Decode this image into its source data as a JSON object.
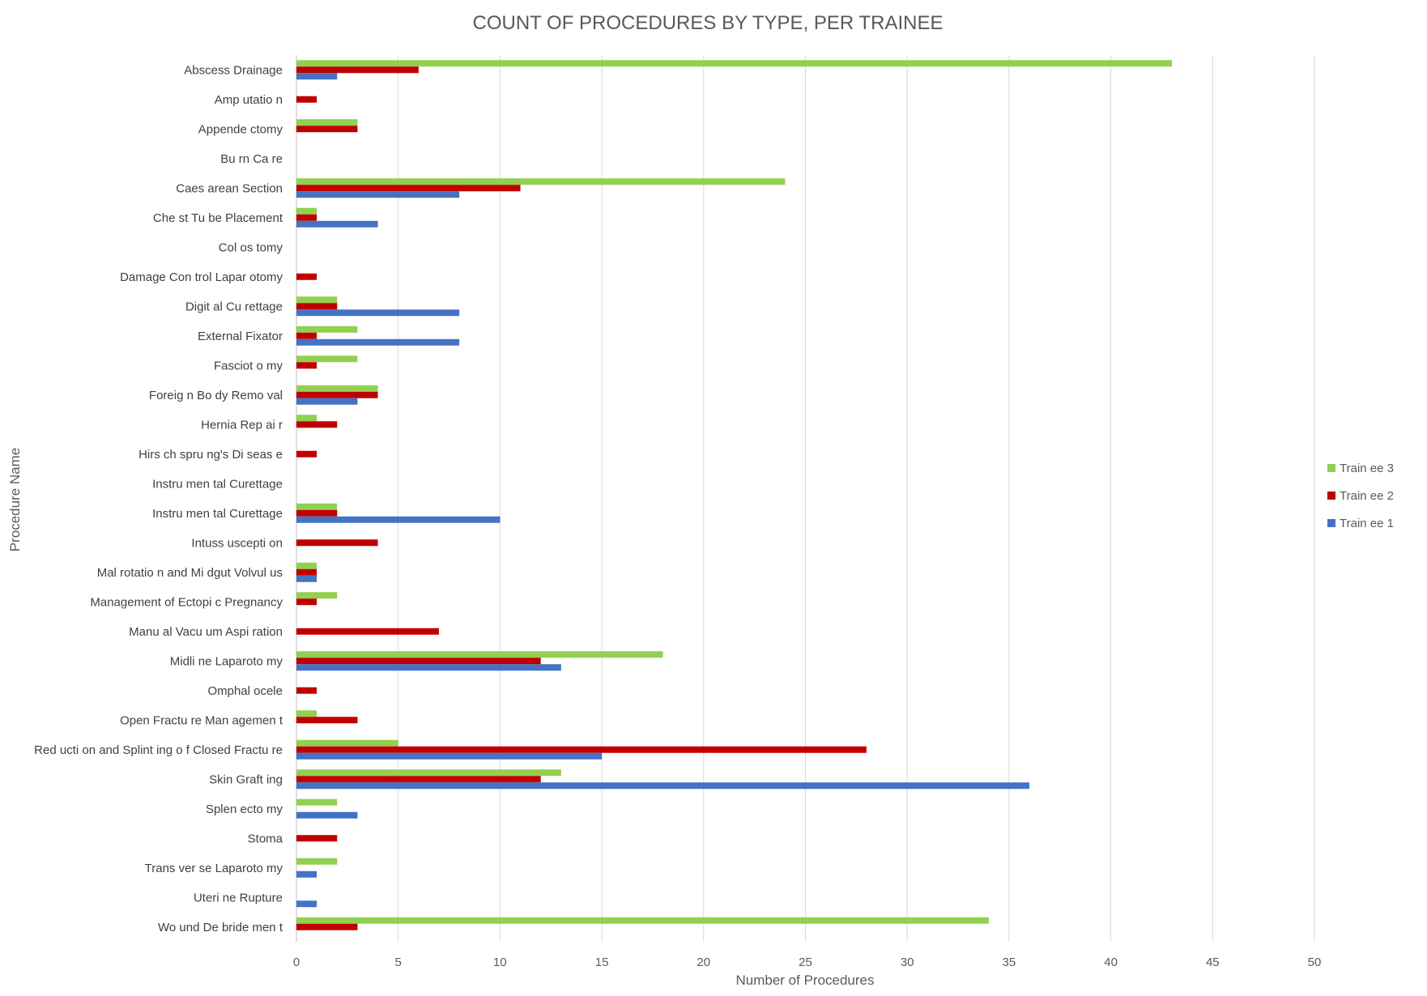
{
  "chart_data": {
    "type": "bar",
    "orientation": "horizontal",
    "title": "COUNT OF PROCEDURES BY TYPE, PER TRAINEE",
    "xlabel": "Number of Procedures",
    "ylabel": "Procedure Name",
    "xlim": [
      0,
      50
    ],
    "xticks": [
      0,
      5,
      10,
      15,
      20,
      25,
      30,
      35,
      40,
      45,
      50
    ],
    "grid": true,
    "legend_position": "right",
    "categories": [
      "Abscess Drainage",
      "Amp utatio n",
      "Appende ctomy",
      "Bu rn Ca re",
      "Caes arean Section",
      "Che st Tu be Placement",
      "Col os tomy",
      "Damage Con trol Lapar otomy",
      "Digit al Cu rettage",
      "External Fixator",
      "Fasciot o my",
      "Foreig n Bo dy Remo val",
      "Hernia Rep ai r",
      "Hirs ch spru ng's Di seas e",
      "Instru men tal Curettage",
      "Instru men tal Curettage",
      "Intuss uscepti on",
      "Mal rotatio n and Mi dgut Volvul us",
      "Management of Ectopi c Pregnancy",
      "Manu al Vacu um Aspi ration",
      "Midli ne Laparoto my",
      "Omphal ocele",
      "Open Fractu re Man agemen t",
      "Red ucti on and Splint ing o f Closed Fractu re",
      "Skin Graft ing",
      "Splen ecto my",
      "Stoma",
      "Trans ver se Laparoto my",
      "Uteri ne Rupture",
      "Wo und De bride men t"
    ],
    "series": [
      {
        "name": "Train ee 3",
        "color": "#92d050",
        "values": [
          43,
          0,
          3,
          0,
          24,
          1,
          0,
          0,
          2,
          3,
          3,
          4,
          1,
          0,
          0,
          2,
          0,
          1,
          2,
          0,
          18,
          0,
          1,
          5,
          13,
          2,
          0,
          2,
          0,
          34
        ]
      },
      {
        "name": "Train ee 2",
        "color": "#c00000",
        "values": [
          6,
          1,
          3,
          0,
          11,
          1,
          0,
          1,
          2,
          1,
          1,
          4,
          2,
          1,
          0,
          2,
          4,
          1,
          1,
          7,
          12,
          1,
          3,
          28,
          12,
          0,
          2,
          0,
          0,
          3
        ]
      },
      {
        "name": "Train ee 1",
        "color": "#4472c4",
        "values": [
          2,
          0,
          0,
          0,
          8,
          4,
          0,
          0,
          8,
          8,
          0,
          3,
          0,
          0,
          0,
          10,
          0,
          1,
          0,
          0,
          13,
          0,
          0,
          15,
          36,
          3,
          0,
          1,
          1,
          0
        ]
      }
    ]
  }
}
